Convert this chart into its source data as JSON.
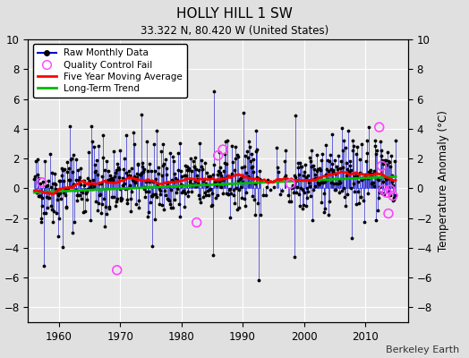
{
  "title": "HOLLY HILL 1 SW",
  "subtitle": "33.322 N, 80.420 W (United States)",
  "ylabel": "Temperature Anomaly (°C)",
  "credit": "Berkeley Earth",
  "xlim": [
    1955,
    2017
  ],
  "ylim": [
    -9,
    10
  ],
  "yticks": [
    -8,
    -6,
    -4,
    -2,
    0,
    2,
    4,
    6,
    8,
    10
  ],
  "xticks": [
    1960,
    1970,
    1980,
    1990,
    2000,
    2010
  ],
  "fig_bg": "#e0e0e0",
  "plot_bg": "#e8e8e8",
  "raw_color": "#0000cc",
  "ma_color": "#ff0000",
  "trend_color": "#00bb00",
  "qc_color": "#ff44ff",
  "seed": 42,
  "trend_slope": 0.018,
  "trend_intercept": -0.3,
  "trend_start": 1956,
  "trend_end": 2015,
  "data_start": 1956.0,
  "data_end": 2015.0,
  "gap_start": 1993,
  "gap_end": 1998,
  "qc_x": [
    1957.2,
    1969.5,
    1982.5,
    1986.0,
    1986.8,
    1997.8,
    2012.3,
    2012.7,
    2013.0,
    2013.5,
    2013.8,
    2014.1,
    2014.5
  ],
  "qc_y": [
    0.4,
    -5.5,
    -2.3,
    2.2,
    2.6,
    0.3,
    4.1,
    1.5,
    -0.1,
    -0.3,
    -1.7,
    -0.1,
    -0.5
  ]
}
